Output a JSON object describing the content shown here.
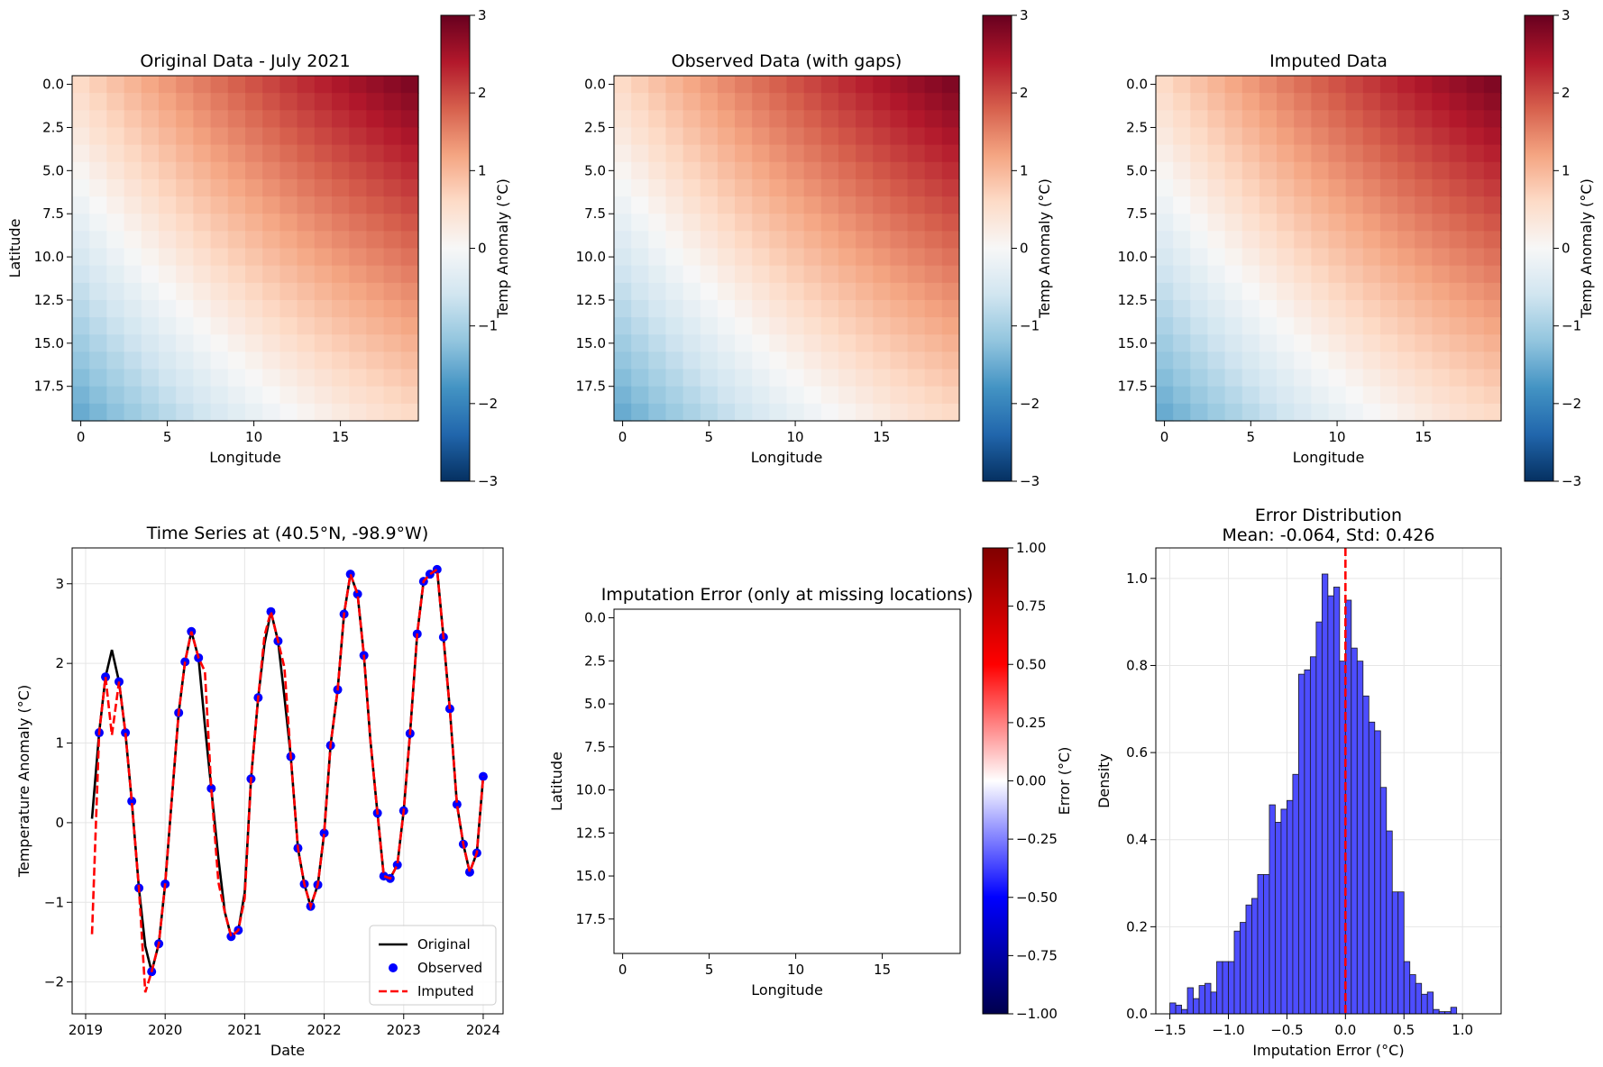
{
  "chart_data": [
    {
      "type": "heatmap",
      "id": "original",
      "title": "Original Data - July 2021",
      "xlabel": "Longitude",
      "ylabel": "Latitude",
      "grid_size": [
        20,
        20
      ],
      "xticks": [
        "0",
        "5",
        "10",
        "15"
      ],
      "yticks": [
        "0.0",
        "2.5",
        "5.0",
        "7.5",
        "10.0",
        "12.5",
        "15.0",
        "17.5"
      ],
      "colorbar": {
        "label": "Temp Anomaly (°C)",
        "min": -3,
        "max": 3,
        "ticks": [
          "3",
          "2",
          "1",
          "0",
          "−1",
          "−2",
          "−3"
        ],
        "colormap": "RdBu_r"
      },
      "field": {
        "corner_top_left": 0.6,
        "corner_top_right": 2.8,
        "corner_bottom_left": -1.2,
        "corner_bottom_right": 0.6,
        "bottom_left_cool_region": true
      }
    },
    {
      "type": "heatmap",
      "id": "observed",
      "title": "Observed Data (with gaps)",
      "xlabel": "Longitude",
      "ylabel": "",
      "grid_size": [
        20,
        20
      ],
      "xticks": [
        "0",
        "5",
        "10",
        "15"
      ],
      "yticks": [
        "0.0",
        "2.5",
        "5.0",
        "7.5",
        "10.0",
        "12.5",
        "15.0",
        "17.5"
      ],
      "colorbar": {
        "label": "Temp Anomaly (°C)",
        "min": -3,
        "max": 3,
        "ticks": [
          "3",
          "2",
          "1",
          "0",
          "−1",
          "−2",
          "−3"
        ],
        "colormap": "RdBu_r"
      },
      "field": {
        "corner_top_left": 0.6,
        "corner_top_right": 2.8,
        "corner_bottom_left": -1.2,
        "corner_bottom_right": 0.6,
        "bottom_left_cool_region": true
      }
    },
    {
      "type": "heatmap",
      "id": "imputed",
      "title": "Imputed Data",
      "xlabel": "Longitude",
      "ylabel": "",
      "grid_size": [
        20,
        20
      ],
      "xticks": [
        "0",
        "5",
        "10",
        "15"
      ],
      "yticks": [
        "0.0",
        "2.5",
        "5.0",
        "7.5",
        "10.0",
        "12.5",
        "15.0",
        "17.5"
      ],
      "colorbar": {
        "label": "Temp Anomaly (°C)",
        "min": -3,
        "max": 3,
        "ticks": [
          "3",
          "2",
          "1",
          "0",
          "−1",
          "−2",
          "−3"
        ],
        "colormap": "RdBu_r"
      },
      "field": {
        "corner_top_left": 0.6,
        "corner_top_right": 2.8,
        "corner_bottom_left": -1.2,
        "corner_bottom_right": 0.6,
        "bottom_left_cool_region": true
      }
    },
    {
      "type": "line",
      "id": "timeseries",
      "title": "Time Series at (40.5°N, -98.9°W)",
      "xlabel": "Date",
      "ylabel": "Temperature Anomaly (°C)",
      "xlim": [
        2018.83,
        2024.25
      ],
      "ylim": [
        -2.4,
        3.45
      ],
      "xticks": [
        "2019",
        "2020",
        "2021",
        "2022",
        "2023",
        "2024"
      ],
      "yticks": [
        "−2",
        "−1",
        "0",
        "1",
        "2",
        "3"
      ],
      "grid": true,
      "legend": {
        "placement": "lower-right",
        "entries": [
          "Original",
          "Observed",
          "Imputed"
        ]
      },
      "x": [
        2019.08,
        2019.17,
        2019.25,
        2019.33,
        2019.42,
        2019.5,
        2019.58,
        2019.67,
        2019.75,
        2019.83,
        2019.92,
        2020.0,
        2020.08,
        2020.17,
        2020.25,
        2020.33,
        2020.42,
        2020.5,
        2020.58,
        2020.67,
        2020.75,
        2020.83,
        2020.92,
        2021.0,
        2021.08,
        2021.17,
        2021.25,
        2021.33,
        2021.42,
        2021.5,
        2021.58,
        2021.67,
        2021.75,
        2021.83,
        2021.92,
        2022.0,
        2022.08,
        2022.17,
        2022.25,
        2022.33,
        2022.42,
        2022.5,
        2022.58,
        2022.67,
        2022.75,
        2022.83,
        2022.92,
        2023.0,
        2023.08,
        2023.17,
        2023.25,
        2023.33,
        2023.42,
        2023.5,
        2023.58,
        2023.67,
        2023.75,
        2023.83,
        2023.92,
        2024.0
      ],
      "series": [
        {
          "name": "Original",
          "values": [
            0.05,
            1.13,
            1.83,
            2.17,
            1.77,
            1.13,
            0.27,
            -0.82,
            -1.55,
            -1.87,
            -1.52,
            -0.77,
            0.25,
            1.38,
            2.02,
            2.4,
            2.07,
            1.22,
            0.43,
            -0.45,
            -1.12,
            -1.43,
            -1.35,
            -0.88,
            0.55,
            1.57,
            2.25,
            2.65,
            2.28,
            1.58,
            0.83,
            -0.32,
            -0.77,
            -1.05,
            -0.78,
            -0.13,
            0.97,
            1.67,
            2.62,
            3.12,
            2.87,
            2.1,
            1.05,
            0.12,
            -0.67,
            -0.7,
            -0.53,
            0.15,
            1.12,
            2.37,
            3.03,
            3.12,
            3.18,
            2.33,
            1.43,
            0.23,
            -0.27,
            -0.62,
            -0.38,
            0.58
          ]
        },
        {
          "name": "Observed",
          "x": [
            2019.17,
            2019.25,
            2019.42,
            2019.5,
            2019.58,
            2019.67,
            2019.83,
            2019.92,
            2020.0,
            2020.17,
            2020.25,
            2020.33,
            2020.42,
            2020.58,
            2020.83,
            2020.92,
            2021.08,
            2021.17,
            2021.33,
            2021.42,
            2021.58,
            2021.67,
            2021.75,
            2021.83,
            2021.92,
            2022.0,
            2022.08,
            2022.17,
            2022.25,
            2022.33,
            2022.42,
            2022.5,
            2022.67,
            2022.75,
            2022.83,
            2022.92,
            2023.0,
            2023.08,
            2023.17,
            2023.25,
            2023.33,
            2023.42,
            2023.5,
            2023.58,
            2023.67,
            2023.75,
            2023.83,
            2023.92,
            2024.0
          ],
          "values": [
            1.13,
            1.83,
            1.77,
            1.13,
            0.27,
            -0.82,
            -1.87,
            -1.52,
            -0.77,
            1.38,
            2.02,
            2.4,
            2.07,
            0.43,
            -1.43,
            -1.35,
            0.55,
            1.57,
            2.65,
            2.28,
            0.83,
            -0.32,
            -0.77,
            -1.05,
            -0.78,
            -0.13,
            0.97,
            1.67,
            2.62,
            3.12,
            2.87,
            2.1,
            0.12,
            -0.67,
            -0.7,
            -0.53,
            0.15,
            1.12,
            2.37,
            3.03,
            3.12,
            3.18,
            2.33,
            1.43,
            0.23,
            -0.27,
            -0.62,
            -0.38,
            0.58
          ]
        },
        {
          "name": "Imputed",
          "values": [
            -1.4,
            1.13,
            1.83,
            1.1,
            1.77,
            1.13,
            0.27,
            -0.82,
            -2.13,
            -1.87,
            -1.52,
            -0.77,
            0.25,
            1.38,
            2.02,
            2.4,
            2.07,
            1.9,
            0.43,
            -0.75,
            -1.12,
            -1.43,
            -1.35,
            -0.95,
            0.55,
            1.57,
            2.35,
            2.65,
            2.28,
            1.95,
            0.83,
            -0.32,
            -0.77,
            -1.05,
            -0.78,
            -0.13,
            0.97,
            1.67,
            2.62,
            3.12,
            2.87,
            2.1,
            1.05,
            0.12,
            -0.67,
            -0.7,
            -0.53,
            0.15,
            1.12,
            2.37,
            3.03,
            3.12,
            3.18,
            2.33,
            1.43,
            0.23,
            -0.27,
            -0.62,
            -0.38,
            0.58
          ]
        }
      ]
    },
    {
      "type": "heatmap",
      "id": "error_map",
      "title": "Imputation Error (only at missing locations)",
      "xlabel": "Longitude",
      "ylabel": "Latitude",
      "grid_size": [
        20,
        20
      ],
      "xticks": [
        "0",
        "5",
        "10",
        "15"
      ],
      "yticks": [
        "0.0",
        "2.5",
        "5.0",
        "7.5",
        "10.0",
        "12.5",
        "15.0",
        "17.5"
      ],
      "colorbar": {
        "label": "Error (°C)",
        "min": -1,
        "max": 1,
        "ticks": [
          "1.00",
          "0.75",
          "0.50",
          "0.25",
          "0.00",
          "−0.25",
          "−0.50",
          "−0.75",
          "−1.00"
        ],
        "colormap": "seismic"
      },
      "empty": true
    },
    {
      "type": "bar",
      "id": "histogram",
      "title": "Error Distribution",
      "subtitle": "Mean: -0.064, Std: 0.426",
      "xlabel": "Imputation Error (°C)",
      "ylabel": "Density",
      "xlim": [
        -1.62,
        1.33
      ],
      "ylim": [
        0,
        1.07
      ],
      "xticks": [
        "−1.5",
        "−1.0",
        "−0.5",
        "0.0",
        "0.5",
        "1.0"
      ],
      "yticks": [
        "0.0",
        "0.2",
        "0.4",
        "0.6",
        "0.8",
        "1.0"
      ],
      "grid": true,
      "bin_start": -1.5,
      "bin_width": 0.05,
      "values": [
        0.025,
        0.02,
        0.01,
        0.06,
        0.035,
        0.065,
        0.07,
        0.05,
        0.12,
        0.12,
        0.12,
        0.19,
        0.21,
        0.25,
        0.265,
        0.32,
        0.32,
        0.48,
        0.44,
        0.47,
        0.49,
        0.55,
        0.78,
        0.79,
        0.82,
        0.9,
        1.01,
        0.96,
        0.98,
        0.81,
        0.95,
        0.84,
        0.81,
        0.73,
        0.67,
        0.65,
        0.52,
        0.42,
        0.28,
        0.28,
        0.12,
        0.09,
        0.07,
        0.045,
        0.05,
        0.01,
        0.005,
        0.005,
        0.015
      ],
      "reference_line_x": 0.0
    }
  ]
}
